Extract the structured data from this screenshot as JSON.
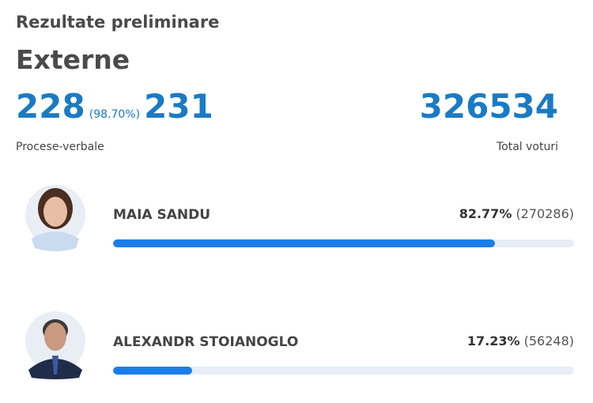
{
  "header": {
    "title": "Rezultate preliminare",
    "subtitle": "Externe"
  },
  "stats": {
    "processed": 228,
    "processed_percent": {
      "value": 98.7,
      "label": "(98.70%)"
    },
    "total": 231,
    "processed_label": "Procese-verbale",
    "total_votes": 326534,
    "total_votes_label": "Total voturi"
  },
  "candidates": [
    {
      "name": "MAIA SANDU",
      "percent": 82.77,
      "percent_label": "82.77%",
      "votes": 270286,
      "votes_label": "(270286)"
    },
    {
      "name": "ALEXANDR STOIANOGLO",
      "percent": 17.23,
      "percent_label": "17.23%",
      "votes": 56248,
      "votes_label": "(56248)"
    }
  ]
}
